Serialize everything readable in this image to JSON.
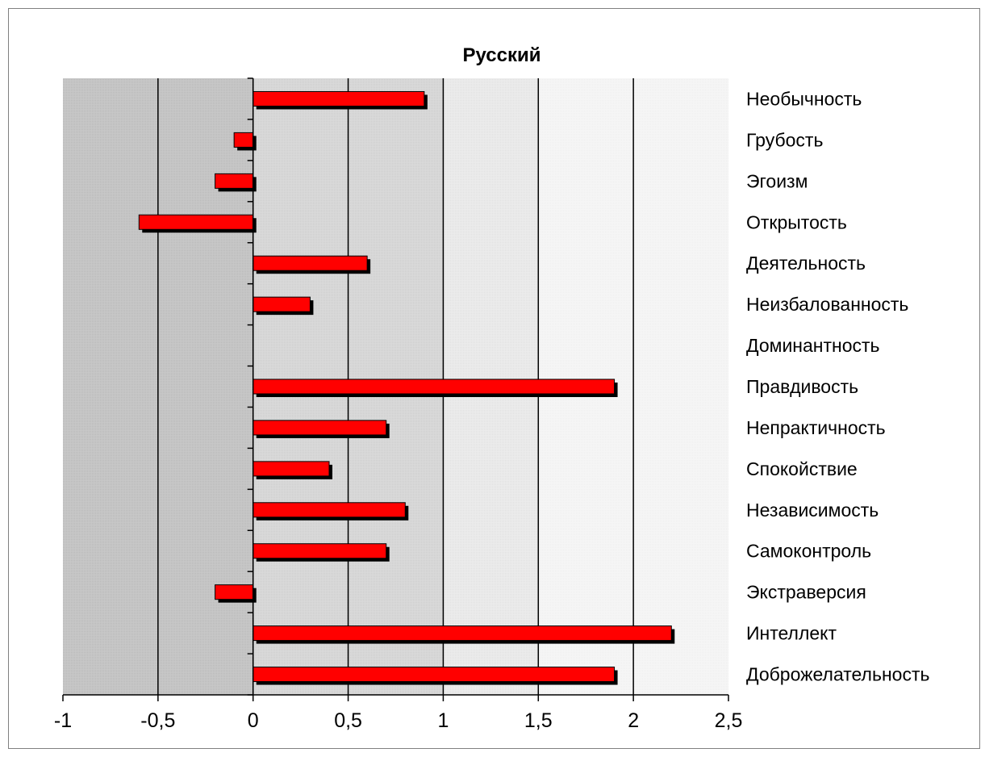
{
  "chart_data": {
    "type": "bar",
    "orientation": "horizontal",
    "title": "Русский",
    "xlabel": "",
    "ylabel": "",
    "xlim": [
      -1,
      2.5
    ],
    "x_ticks": [
      "-1",
      "-0,5",
      "0",
      "0,5",
      "1",
      "1,5",
      "2",
      "2,5"
    ],
    "grid": true,
    "legend": "none",
    "bar_color": "#ff0000",
    "bar_shadow_color": "#000000",
    "categories": [
      "Необычность",
      "Грубость",
      "Эгоизм",
      "Открытость",
      "Деятельность",
      "Неизбалованность",
      "Доминантность",
      "Правдивость",
      "Непрактичность",
      "Спокойствие",
      "Независимость",
      "Самоконтроль",
      "Экстраверсия",
      "Интеллект",
      "Доброжелательность"
    ],
    "values": [
      0.9,
      -0.1,
      -0.2,
      -0.6,
      0.6,
      0.3,
      0,
      1.9,
      0.7,
      0.4,
      0.8,
      0.7,
      -0.2,
      2.2,
      1.9
    ]
  }
}
